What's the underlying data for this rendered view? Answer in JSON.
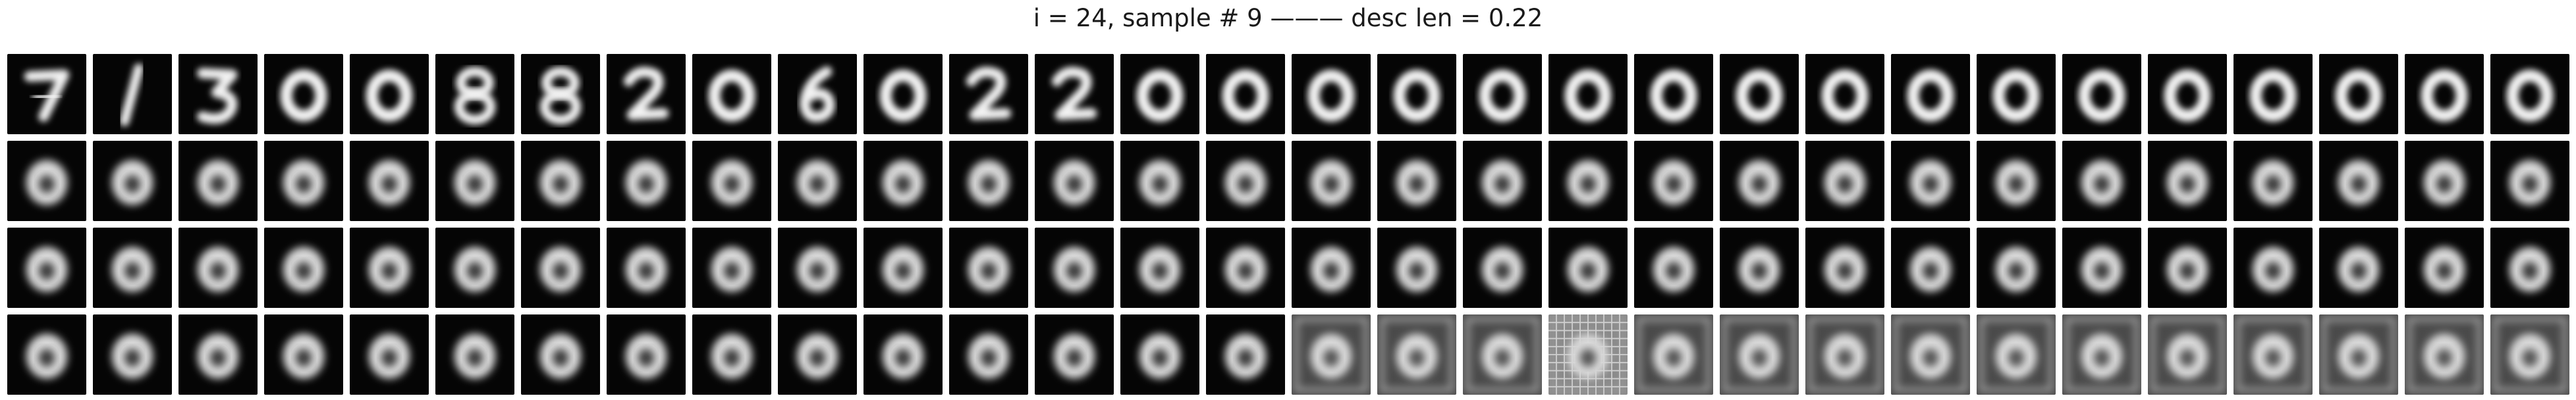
{
  "title": "i = 24, sample # 9 ——— desc len = 0.22",
  "panel": {
    "rows": 4,
    "columns": 30,
    "row0_digits": [
      "7",
      "1",
      "3",
      "0",
      "0",
      "8",
      "8",
      "2",
      "0",
      "6",
      "0",
      "2",
      "2",
      "0",
      "0",
      "0",
      "0",
      "0",
      "0",
      "0",
      "0",
      "0",
      "0",
      "0",
      "0",
      "0",
      "0",
      "0",
      "0",
      "0"
    ],
    "noisy_from_row3_col": 15,
    "grid_pattern_cell": [
      3,
      18
    ]
  }
}
